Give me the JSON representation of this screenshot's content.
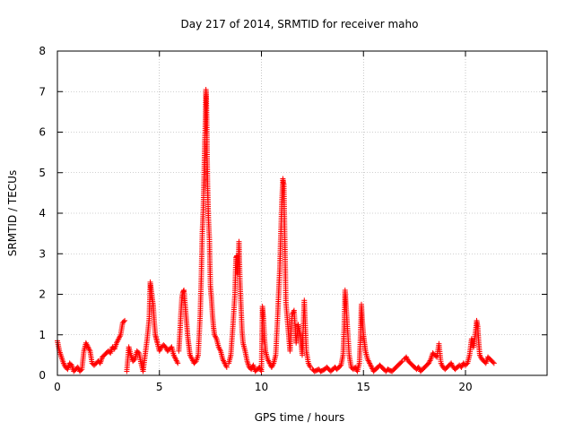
{
  "chart_data": {
    "type": "scatter",
    "title": "Day 217 of 2014, SRMTID for receiver maho",
    "xlabel": "GPS time / hours",
    "ylabel": "SRMTID / TECUs",
    "xlim": [
      0,
      24
    ],
    "ylim": [
      0,
      8
    ],
    "x_ticks": [
      0,
      5,
      10,
      15,
      20
    ],
    "y_ticks": [
      0,
      1,
      2,
      3,
      4,
      5,
      6,
      7,
      8
    ],
    "grid": true,
    "marker": "+",
    "color": "#ff0000",
    "series": [
      {
        "name": "SRMTID",
        "segments": [
          {
            "x": [
              0.0,
              0.1,
              0.2,
              0.3,
              0.4,
              0.5,
              0.6,
              0.7,
              0.8,
              0.9,
              1.0,
              1.1,
              1.2,
              1.3,
              1.4,
              1.5,
              1.6,
              1.7,
              1.8,
              1.9,
              2.0,
              2.1,
              2.2,
              2.3,
              2.4,
              2.5,
              2.6,
              2.7,
              2.8,
              2.9,
              3.0,
              3.1,
              3.2,
              3.3
            ],
            "y": [
              0.85,
              0.6,
              0.45,
              0.3,
              0.2,
              0.15,
              0.3,
              0.25,
              0.1,
              0.15,
              0.2,
              0.1,
              0.15,
              0.6,
              0.8,
              0.7,
              0.6,
              0.3,
              0.25,
              0.3,
              0.35,
              0.3,
              0.45,
              0.5,
              0.55,
              0.6,
              0.55,
              0.7,
              0.65,
              0.8,
              0.9,
              1.0,
              1.3,
              1.35
            ]
          },
          {
            "x": [
              3.4,
              3.5,
              3.6,
              3.7,
              3.8,
              3.9,
              4.0,
              4.1,
              4.2,
              4.3,
              4.4,
              4.5,
              4.55,
              4.6,
              4.65,
              4.7,
              4.75,
              4.8,
              4.85,
              4.9,
              5.0,
              5.1,
              5.2,
              5.3,
              5.4,
              5.5,
              5.6,
              5.7,
              5.8,
              5.9
            ],
            "y": [
              0.1,
              0.7,
              0.5,
              0.35,
              0.4,
              0.6,
              0.55,
              0.3,
              0.1,
              0.5,
              0.9,
              1.4,
              2.3,
              2.1,
              1.9,
              1.7,
              1.3,
              1.0,
              0.9,
              0.8,
              0.6,
              0.7,
              0.75,
              0.7,
              0.6,
              0.65,
              0.7,
              0.5,
              0.4,
              0.3
            ]
          },
          {
            "x": [
              5.95,
              6.0,
              6.05,
              6.1,
              6.15,
              6.2,
              6.25,
              6.3,
              6.35,
              6.4,
              6.45,
              6.5,
              6.6,
              6.7,
              6.8,
              6.9,
              7.0,
              7.05,
              7.1,
              7.15,
              7.2,
              7.22,
              7.24,
              7.26,
              7.28,
              7.3,
              7.32,
              7.34,
              7.36,
              7.38,
              7.4,
              7.45,
              7.5,
              7.55,
              7.6,
              7.65,
              7.7,
              7.8,
              7.9,
              8.0,
              8.1,
              8.2,
              8.3
            ],
            "y": [
              0.6,
              1.0,
              1.5,
              1.9,
              2.05,
              2.1,
              1.8,
              1.5,
              1.2,
              0.9,
              0.7,
              0.5,
              0.4,
              0.3,
              0.35,
              0.5,
              1.5,
              2.4,
              3.5,
              4.1,
              5.2,
              5.7,
              6.0,
              6.5,
              7.05,
              6.8,
              6.3,
              5.4,
              4.7,
              4.3,
              3.9,
              3.35,
              2.2,
              1.9,
              1.5,
              1.2,
              1.0,
              0.9,
              0.7,
              0.6,
              0.4,
              0.3,
              0.2
            ]
          },
          {
            "x": [
              8.4,
              8.5,
              8.6,
              8.7,
              8.75,
              8.8,
              8.85,
              8.9,
              8.95,
              9.0,
              9.05,
              9.1,
              9.2,
              9.3,
              9.4,
              9.5,
              9.6,
              9.7,
              9.8,
              9.9,
              10.0,
              10.05,
              10.1,
              10.15,
              10.2,
              10.3,
              10.4,
              10.5,
              10.6,
              10.7,
              10.8,
              10.85,
              10.9,
              10.95,
              11.0,
              11.05,
              11.1,
              11.2,
              11.3,
              11.4,
              11.5,
              11.6,
              11.7,
              11.8,
              11.9,
              12.0,
              12.1,
              12.2,
              12.3,
              12.4
            ],
            "y": [
              0.3,
              0.5,
              1.2,
              2.0,
              2.9,
              2.95,
              2.5,
              3.3,
              2.3,
              1.7,
              1.1,
              0.8,
              0.6,
              0.35,
              0.2,
              0.15,
              0.25,
              0.1,
              0.15,
              0.2,
              0.1,
              1.7,
              1.4,
              0.9,
              0.6,
              0.4,
              0.3,
              0.2,
              0.3,
              0.5,
              1.5,
              2.1,
              2.65,
              3.5,
              4.3,
              4.85,
              4.7,
              1.8,
              1.2,
              0.6,
              1.5,
              1.6,
              0.8,
              1.25,
              1.0,
              0.5,
              1.85,
              0.6,
              0.3,
              0.2
            ]
          },
          {
            "x": [
              12.5,
              12.6,
              12.7,
              12.8,
              12.9,
              13.0,
              13.1,
              13.2,
              13.3,
              13.4,
              13.5,
              13.6,
              13.7,
              13.8,
              13.9,
              14.0,
              14.05,
              14.1,
              14.15,
              14.2,
              14.3,
              14.4,
              14.5,
              14.6,
              14.7,
              14.8,
              14.85,
              14.9,
              14.95,
              15.0,
              15.05,
              15.1,
              15.2,
              15.3,
              15.4,
              15.5,
              15.6,
              15.7,
              15.8,
              15.9,
              16.0,
              16.1,
              16.2,
              16.3,
              16.4,
              16.5,
              16.6,
              16.7,
              16.8,
              16.9
            ],
            "y": [
              0.15,
              0.1,
              0.12,
              0.15,
              0.1,
              0.12,
              0.15,
              0.2,
              0.15,
              0.1,
              0.15,
              0.2,
              0.15,
              0.2,
              0.25,
              0.5,
              1.1,
              2.1,
              1.7,
              1.3,
              0.5,
              0.2,
              0.15,
              0.2,
              0.1,
              0.3,
              0.9,
              1.75,
              1.3,
              1.0,
              0.8,
              0.6,
              0.4,
              0.3,
              0.2,
              0.1,
              0.15,
              0.2,
              0.25,
              0.2,
              0.15,
              0.1,
              0.15,
              0.12,
              0.1,
              0.15,
              0.2,
              0.25,
              0.3,
              0.35
            ]
          },
          {
            "x": [
              17.0,
              17.1,
              17.2,
              17.3,
              17.4,
              17.5,
              17.6,
              17.7,
              17.8,
              17.9,
              18.0,
              18.1,
              18.2,
              18.3,
              18.4,
              18.5,
              18.6,
              18.7,
              18.8,
              18.9,
              19.0,
              19.1,
              19.2,
              19.3,
              19.4,
              19.5,
              19.6,
              19.7,
              19.8,
              19.9,
              20.0,
              20.1,
              20.2,
              20.3,
              20.4,
              20.5,
              20.55,
              20.6,
              20.65,
              20.7,
              20.8,
              20.9,
              21.0,
              21.1,
              21.2,
              21.3,
              21.4
            ],
            "y": [
              0.4,
              0.45,
              0.35,
              0.3,
              0.25,
              0.2,
              0.15,
              0.2,
              0.1,
              0.15,
              0.2,
              0.25,
              0.3,
              0.4,
              0.55,
              0.5,
              0.45,
              0.78,
              0.3,
              0.2,
              0.15,
              0.2,
              0.25,
              0.3,
              0.2,
              0.15,
              0.2,
              0.25,
              0.2,
              0.3,
              0.25,
              0.3,
              0.5,
              0.9,
              0.7,
              1.1,
              1.35,
              1.2,
              0.8,
              0.5,
              0.4,
              0.35,
              0.3,
              0.45,
              0.4,
              0.35,
              0.3
            ]
          }
        ]
      }
    ]
  }
}
